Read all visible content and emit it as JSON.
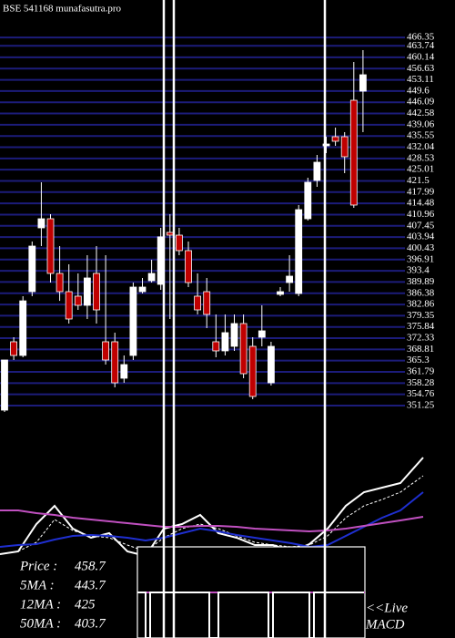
{
  "chart_data": {
    "type": "candlestick",
    "title": "BSE 541168 munafasutra.pro",
    "up_color": "#ffffff",
    "down_color": "#c00000",
    "grid_color": "#1c1c7a",
    "grid": true,
    "ylim": [
      349.25,
      471.8
    ],
    "yticks": [
      351.25,
      354.76,
      358.28,
      361.79,
      365.3,
      368.81,
      372.33,
      375.84,
      379.35,
      382.86,
      386.38,
      389.89,
      393.4,
      396.91,
      400.43,
      403.94,
      407.45,
      410.96,
      414.48,
      417.99,
      421.5,
      425.01,
      428.53,
      432.04,
      435.55,
      439.06,
      442.58,
      446.09,
      449.6,
      453.11,
      456.63,
      460.14,
      463.74,
      466.35
    ],
    "open": [
      349.82,
      371.2,
      366.92,
      386.87,
      406.82,
      409.67,
      392.57,
      386.87,
      385.45,
      382.6,
      392.57,
      371.2,
      371.2,
      359.8,
      366.92,
      386.87,
      390.29,
      389.15,
      405.4,
      404.54,
      399.7,
      385.45,
      386.87,
      371.2,
      368.35,
      369.77,
      376.9,
      369.77,
      372.62,
      358.37,
      386.02,
      389.72,
      386.3,
      409.67,
      421.64,
      432.47,
      435.32,
      435.32,
      446.72,
      449.57
    ],
    "high": [
      365.5,
      372.62,
      385.45,
      402.55,
      421.07,
      411.1,
      401.12,
      395.42,
      392.57,
      398.27,
      401.12,
      398.27,
      374.05,
      366.92,
      389.72,
      391.15,
      396.85,
      406.82,
      411.1,
      406.82,
      402.55,
      392.57,
      391.15,
      379.75,
      379.75,
      379.75,
      379.75,
      372.62,
      382.6,
      371.2,
      388.3,
      398.27,
      413.95,
      422.5,
      429.62,
      435.32,
      438.17,
      436.75,
      458.69,
      462.4
    ],
    "low": [
      349.25,
      365.5,
      366.35,
      385.45,
      401.12,
      389.72,
      384.0,
      376.9,
      381.17,
      378.32,
      376.9,
      364.07,
      356.95,
      358.37,
      365.5,
      386.3,
      389.72,
      387.44,
      378.32,
      398.27,
      388.3,
      379.75,
      375.47,
      366.35,
      366.92,
      368.35,
      359.8,
      353.24,
      369.77,
      357.52,
      385.45,
      386.87,
      385.45,
      409.1,
      419.65,
      430.19,
      432.47,
      423.92,
      413.09,
      436.75
    ],
    "close": [
      365.5,
      366.92,
      384.0,
      401.12,
      409.67,
      392.57,
      386.87,
      378.32,
      382.6,
      391.15,
      381.17,
      365.5,
      358.37,
      364.07,
      388.3,
      388.3,
      392.57,
      404.0,
      404.54,
      399.7,
      389.72,
      381.17,
      379.75,
      368.35,
      374.05,
      376.9,
      361.22,
      354.1,
      374.62,
      369.77,
      386.87,
      391.72,
      412.52,
      421.07,
      427.34,
      433.04,
      433.9,
      429.05,
      413.95,
      454.7
    ],
    "indicator": {
      "ylim": [
        0,
        150
      ],
      "x": [
        0,
        20,
        40,
        60,
        80,
        100,
        120,
        140,
        160,
        180,
        200,
        220,
        240,
        260,
        280,
        300,
        320,
        340,
        360,
        380,
        400,
        420,
        440,
        465
      ],
      "series": [
        {
          "color": "#ffffff",
          "values": [
            42,
            45,
            75,
            95,
            70,
            60,
            65,
            45,
            40,
            70,
            75,
            85,
            65,
            60,
            52,
            52,
            45,
            53,
            70,
            95,
            110,
            115,
            120,
            148
          ]
        },
        {
          "color": "#ffffff",
          "dash": true,
          "values": [
            42,
            45,
            55,
            80,
            68,
            62,
            60,
            52,
            45,
            60,
            70,
            75,
            70,
            62,
            55,
            52,
            50,
            52,
            62,
            82,
            95,
            102,
            110,
            128
          ]
        },
        {
          "color": "#1f2fd0",
          "values": [
            50,
            52,
            53,
            58,
            62,
            63,
            62,
            60,
            57,
            60,
            65,
            70,
            67,
            63,
            60,
            57,
            54,
            50,
            52,
            62,
            72,
            82,
            90,
            110
          ]
        },
        {
          "color": "#c050c0",
          "values": [
            90,
            90,
            87,
            85,
            82,
            80,
            78,
            76,
            74,
            72,
            72,
            73,
            73,
            72,
            70,
            69,
            68,
            67,
            68,
            70,
            73,
            76,
            79,
            83
          ]
        }
      ]
    },
    "legend": [
      {
        "label": "Price   :",
        "value": 458.7
      },
      {
        "label": "5MA   :",
        "value": 443.7
      },
      {
        "label": "12MA :",
        "value": 425
      },
      {
        "label": "50MA :",
        "value": 403.7
      }
    ],
    "live_label": "<<Live",
    "macd_label": "MACD"
  }
}
